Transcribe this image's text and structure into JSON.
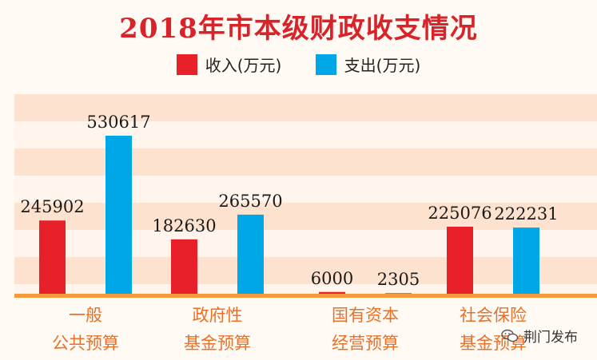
{
  "chart_data": {
    "type": "bar",
    "title": "2018年市本级财政收支情况",
    "categories": [
      [
        "一般",
        "公共预算"
      ],
      [
        "政府性",
        "基金预算"
      ],
      [
        "国有资本",
        "经营预算"
      ],
      [
        "社会保险",
        "基金预算"
      ]
    ],
    "series": [
      {
        "name": "收入(万元)",
        "color": "#e8202a",
        "values": [
          245902,
          182630,
          6000,
          225076
        ]
      },
      {
        "name": "支出(万元)",
        "color": "#00a7e6",
        "values": [
          530617,
          265570,
          2305,
          222231
        ]
      }
    ],
    "legend_position": "top",
    "band_colors": [
      "#fde3cf",
      "#fff5ec"
    ],
    "axis_color": "#f39a3a",
    "category_label_color": "#e8712a"
  },
  "watermark": {
    "text": "荆门发布",
    "icon": "wechat-icon"
  }
}
